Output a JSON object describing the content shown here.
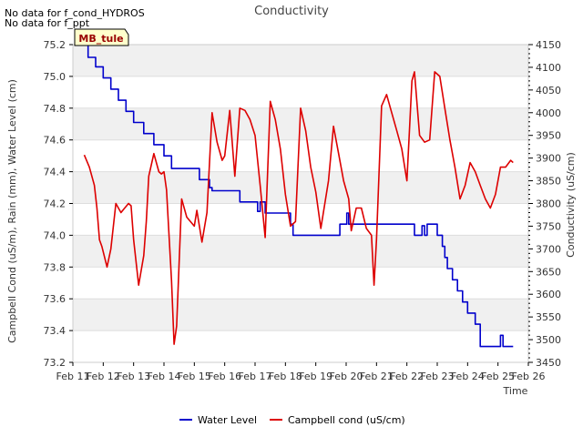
{
  "notes": [
    "No data for f_cond_HYDROS",
    "No data for f_ppt"
  ],
  "site_label": "MB_tule",
  "colors": {
    "water_level": "#0000cc",
    "campbell": "#dd0000",
    "band": "#f0f0f0",
    "site_fill": "#ffffcc"
  },
  "chart_data": {
    "type": "line",
    "title": "Conductivity",
    "xlabel": "Time",
    "ylabel": "Campbell Cond (uS/m), Rain (mm), Water Level (cm)",
    "y2label": "Conductivity (uS/cm)",
    "x_ticks": [
      "Feb 11",
      "Feb 12",
      "Feb 13",
      "Feb 14",
      "Feb 15",
      "Feb 16",
      "Feb 17",
      "Feb 18",
      "Feb 19",
      "Feb 20",
      "Feb 21",
      "Feb 22",
      "Feb 23",
      "Feb 24",
      "Feb 25",
      "Feb 26"
    ],
    "xlim": [
      "2024-02-11",
      "2024-02-26"
    ],
    "ylim": [
      73.2,
      75.2
    ],
    "y_ticks": [
      "73.2",
      "73.4",
      "73.6",
      "73.8",
      "74.0",
      "74.2",
      "74.4",
      "74.6",
      "74.8",
      "75.0",
      "75.2"
    ],
    "y2lim": [
      3450,
      4150
    ],
    "y2_ticks": [
      "3450",
      "3500",
      "3550",
      "3600",
      "3650",
      "3700",
      "3750",
      "3800",
      "3850",
      "3900",
      "3950",
      "4000",
      "4050",
      "4100",
      "4150"
    ],
    "legend_position": "bottom",
    "series": [
      {
        "name": "Water Level",
        "axis": "left",
        "x": [
          "2024-02-11 09:00",
          "2024-02-11 12:00",
          "2024-02-11 18:00",
          "2024-02-12 00:00",
          "2024-02-12 06:00",
          "2024-02-12 12:00",
          "2024-02-12 18:00",
          "2024-02-13 00:00",
          "2024-02-13 08:00",
          "2024-02-13 16:00",
          "2024-02-14 00:00",
          "2024-02-14 06:00",
          "2024-02-14 18:00",
          "2024-02-15 04:00",
          "2024-02-15 12:00",
          "2024-02-15 14:00",
          "2024-02-16 00:00",
          "2024-02-16 12:00",
          "2024-02-17 00:00",
          "2024-02-17 02:00",
          "2024-02-17 04:00",
          "2024-02-17 05:00",
          "2024-02-17 08:00",
          "2024-02-17 12:00",
          "2024-02-18 00:00",
          "2024-02-18 04:00",
          "2024-02-18 06:00",
          "2024-02-18 12:00",
          "2024-02-19 00:00",
          "2024-02-19 12:00",
          "2024-02-19 18:00",
          "2024-02-19 19:00",
          "2024-02-20 00:00",
          "2024-02-20 00:30",
          "2024-02-20 02:00",
          "2024-02-20 12:00",
          "2024-02-21 00:00",
          "2024-02-21 12:00",
          "2024-02-22 00:00",
          "2024-02-22 06:00",
          "2024-02-22 08:00",
          "2024-02-22 12:00",
          "2024-02-22 14:00",
          "2024-02-22 16:00",
          "2024-02-22 18:00",
          "2024-02-23 00:00",
          "2024-02-23 04:00",
          "2024-02-23 06:00",
          "2024-02-23 08:00",
          "2024-02-23 12:00",
          "2024-02-23 16:00",
          "2024-02-23 20:00",
          "2024-02-24 00:00",
          "2024-02-24 06:00",
          "2024-02-24 10:00",
          "2024-02-24 12:00",
          "2024-02-24 18:00",
          "2024-02-25 00:00",
          "2024-02-25 02:00",
          "2024-02-25 04:00",
          "2024-02-25 08:00",
          "2024-02-25 12:00"
        ],
        "y": [
          75.2,
          75.12,
          75.06,
          74.99,
          74.92,
          74.85,
          74.78,
          74.71,
          74.64,
          74.57,
          74.5,
          74.42,
          74.42,
          74.35,
          74.3,
          74.28,
          74.28,
          74.21,
          74.21,
          74.15,
          74.21,
          74.21,
          74.14,
          74.14,
          74.14,
          74.07,
          74.0,
          74.0,
          74.0,
          74.0,
          74.0,
          74.07,
          74.07,
          74.14,
          74.07,
          74.07,
          74.07,
          74.07,
          74.07,
          74.0,
          74.0,
          74.06,
          74.0,
          74.07,
          74.07,
          74.0,
          73.93,
          73.86,
          73.79,
          73.72,
          73.65,
          73.58,
          73.51,
          73.44,
          73.3,
          73.3,
          73.3,
          73.3,
          73.37,
          73.3,
          73.3,
          73.3
        ]
      },
      {
        "name": "Campbell cond (uS/cm)",
        "axis": "right",
        "x": [
          "2024-02-11 09:00",
          "2024-02-11 13:00",
          "2024-02-11 17:00",
          "2024-02-11 19:00",
          "2024-02-11 21:00",
          "2024-02-11 23:00",
          "2024-02-12 03:00",
          "2024-02-12 06:00",
          "2024-02-12 10:00",
          "2024-02-12 14:00",
          "2024-02-12 17:00",
          "2024-02-12 20:00",
          "2024-02-12 22:00",
          "2024-02-13 00:00",
          "2024-02-13 04:00",
          "2024-02-13 08:00",
          "2024-02-13 10:00",
          "2024-02-13 12:00",
          "2024-02-13 16:00",
          "2024-02-13 20:00",
          "2024-02-13 22:00",
          "2024-02-14 00:00",
          "2024-02-14 02:00",
          "2024-02-14 06:00",
          "2024-02-14 08:00",
          "2024-02-14 10:00",
          "2024-02-14 14:00",
          "2024-02-14 18:00",
          "2024-02-15 00:00",
          "2024-02-15 02:00",
          "2024-02-15 06:00",
          "2024-02-15 10:00",
          "2024-02-15 14:00",
          "2024-02-15 18:00",
          "2024-02-15 22:00",
          "2024-02-16 00:00",
          "2024-02-16 04:00",
          "2024-02-16 08:00",
          "2024-02-16 12:00",
          "2024-02-16 16:00",
          "2024-02-16 20:00",
          "2024-02-17 00:00",
          "2024-02-17 04:00",
          "2024-02-17 08:00",
          "2024-02-17 12:00",
          "2024-02-17 16:00",
          "2024-02-17 20:00",
          "2024-02-18 00:00",
          "2024-02-18 04:00",
          "2024-02-18 08:00",
          "2024-02-18 12:00",
          "2024-02-18 16:00",
          "2024-02-18 20:00",
          "2024-02-19 00:00",
          "2024-02-19 04:00",
          "2024-02-19 06:00",
          "2024-02-19 10:00",
          "2024-02-19 14:00",
          "2024-02-19 18:00",
          "2024-02-19 22:00",
          "2024-02-20 02:00",
          "2024-02-20 04:00",
          "2024-02-20 08:00",
          "2024-02-20 12:00",
          "2024-02-20 16:00",
          "2024-02-20 20:00",
          "2024-02-20 22:00",
          "2024-02-21 00:00",
          "2024-02-21 04:00",
          "2024-02-21 08:00",
          "2024-02-21 12:00",
          "2024-02-21 16:00",
          "2024-02-21 20:00",
          "2024-02-22 00:00",
          "2024-02-22 04:00",
          "2024-02-22 06:00",
          "2024-02-22 10:00",
          "2024-02-22 14:00",
          "2024-02-22 18:00",
          "2024-02-22 22:00",
          "2024-02-23 02:00",
          "2024-02-23 06:00",
          "2024-02-23 10:00",
          "2024-02-23 14:00",
          "2024-02-23 18:00",
          "2024-02-23 22:00",
          "2024-02-24 02:00",
          "2024-02-24 06:00",
          "2024-02-24 10:00",
          "2024-02-24 14:00",
          "2024-02-24 18:00",
          "2024-02-24 22:00",
          "2024-02-25 02:00",
          "2024-02-25 06:00",
          "2024-02-25 10:00",
          "2024-02-25 12:00"
        ],
        "y": [
          3907,
          3880,
          3840,
          3790,
          3720,
          3705,
          3660,
          3700,
          3800,
          3780,
          3790,
          3800,
          3795,
          3720,
          3620,
          3685,
          3760,
          3860,
          3910,
          3870,
          3865,
          3870,
          3830,
          3630,
          3490,
          3530,
          3810,
          3770,
          3750,
          3785,
          3715,
          3780,
          4000,
          3935,
          3895,
          3905,
          4005,
          3860,
          4010,
          4005,
          3985,
          3950,
          3840,
          3725,
          4025,
          3985,
          3920,
          3820,
          3750,
          3760,
          4010,
          3960,
          3880,
          3825,
          3745,
          3780,
          3850,
          3970,
          3910,
          3850,
          3810,
          3740,
          3790,
          3790,
          3745,
          3730,
          3620,
          3720,
          4015,
          4040,
          4000,
          3960,
          3920,
          3850,
          4070,
          4090,
          3950,
          3935,
          3940,
          4090,
          4080,
          4010,
          3940,
          3880,
          3810,
          3840,
          3890,
          3870,
          3840,
          3810,
          3790,
          3820,
          3880,
          3880,
          3895,
          3890
        ]
      }
    ],
    "legend": [
      {
        "label": "Water Level"
      },
      {
        "label": "Campbell cond (uS/cm)"
      }
    ]
  }
}
